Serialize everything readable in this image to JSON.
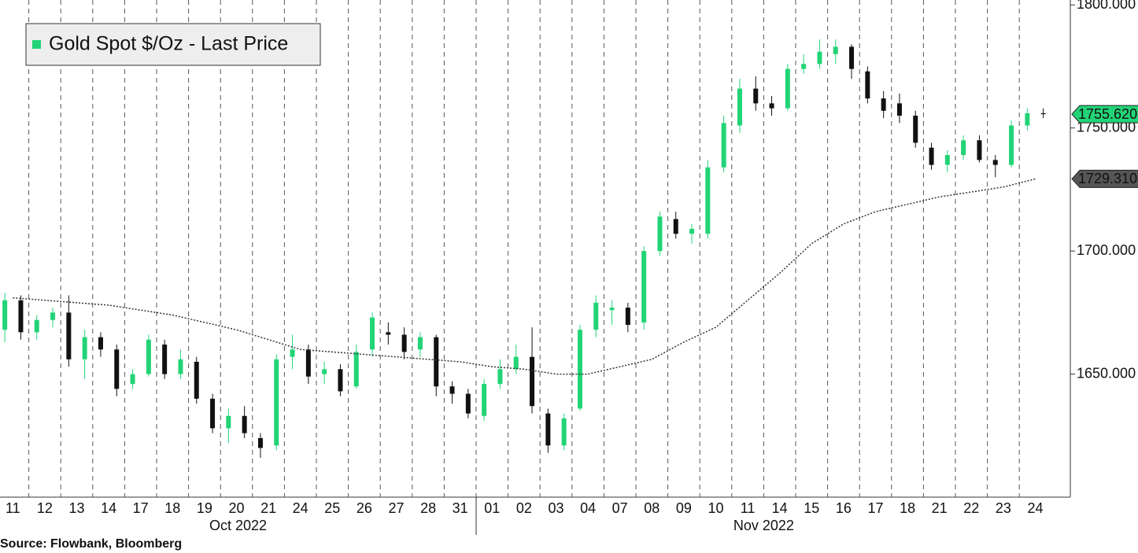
{
  "chart_data": {
    "type": "candlestick",
    "legend": "Gold Spot $/Oz - Last Price",
    "source": "Source:  Flowbank, Bloomberg",
    "categories": [
      "11",
      "12",
      "13",
      "14",
      "17",
      "18",
      "19",
      "20",
      "21",
      "24",
      "25",
      "26",
      "27",
      "28",
      "31",
      "01",
      "02",
      "03",
      "04",
      "07",
      "08",
      "09",
      "10",
      "11",
      "14",
      "15",
      "16",
      "17",
      "18",
      "21",
      "22",
      "23",
      "24"
    ],
    "month_labels": [
      "Oct 2022",
      "Nov 2022"
    ],
    "up_color": "#22d477",
    "down_color": "#111111",
    "open": [
      1668,
      1680,
      1667,
      1672,
      1675,
      1656,
      1665,
      1660,
      1646,
      1650,
      1662,
      1650,
      1655,
      1640,
      1628,
      1633,
      1624,
      1621,
      1657,
      1660,
      1650,
      1652,
      1645,
      1660,
      1667,
      1666,
      1660,
      1665,
      1645,
      1642,
      1633,
      1646,
      1652,
      1657,
      1634,
      1621,
      1636,
      1668,
      1676,
      1677,
      1671,
      1700,
      1713,
      1707,
      1707,
      1734,
      1751,
      1766,
      1760,
      1758,
      1774,
      1776,
      1780,
      1783,
      1773,
      1762,
      1760,
      1755,
      1742,
      1735,
      1739,
      1745,
      1737,
      1735,
      1751,
      1756
    ],
    "high": [
      1683,
      1682,
      1674,
      1677,
      1682,
      1668,
      1667,
      1662,
      1652,
      1666,
      1664,
      1660,
      1657,
      1642,
      1636,
      1637,
      1626,
      1658,
      1666,
      1662,
      1655,
      1654,
      1662,
      1675,
      1671,
      1669,
      1667,
      1666,
      1647,
      1644,
      1648,
      1656,
      1662,
      1669,
      1636,
      1634,
      1670,
      1682,
      1680,
      1679,
      1702,
      1716,
      1716,
      1711,
      1737,
      1755,
      1770,
      1771,
      1763,
      1776,
      1780,
      1786,
      1786,
      1784,
      1775,
      1765,
      1764,
      1757,
      1744,
      1741,
      1747,
      1747,
      1739,
      1753,
      1758,
      1758
    ],
    "low": [
      1663,
      1664,
      1664,
      1669,
      1653,
      1648,
      1657,
      1641,
      1644,
      1649,
      1648,
      1648,
      1638,
      1626,
      1622,
      1624,
      1616,
      1619,
      1652,
      1646,
      1646,
      1641,
      1644,
      1657,
      1662,
      1656,
      1657,
      1641,
      1638,
      1632,
      1631,
      1644,
      1650,
      1634,
      1618,
      1619,
      1635,
      1665,
      1670,
      1667,
      1668,
      1698,
      1705,
      1703,
      1705,
      1732,
      1748,
      1757,
      1755,
      1757,
      1772,
      1774,
      1776,
      1770,
      1760,
      1754,
      1752,
      1742,
      1733,
      1732,
      1737,
      1736,
      1730,
      1734,
      1749,
      1754
    ],
    "close": [
      1680,
      1667,
      1672,
      1675,
      1656,
      1665,
      1660,
      1644,
      1650,
      1664,
      1650,
      1656,
      1640,
      1628,
      1633,
      1626,
      1620,
      1656,
      1660,
      1649,
      1652,
      1643,
      1659,
      1673,
      1666,
      1659,
      1665,
      1645,
      1642,
      1634,
      1646,
      1652,
      1657,
      1637,
      1621,
      1632,
      1668,
      1679,
      1677,
      1670,
      1700,
      1714,
      1707,
      1709,
      1734,
      1752,
      1766,
      1760,
      1758,
      1774,
      1776,
      1781,
      1783,
      1774,
      1762,
      1757,
      1755,
      1744,
      1735,
      1739,
      1745,
      1737,
      1735,
      1751,
      1756,
      1755.62
    ],
    "moving_average": [
      1681,
      1680,
      1679,
      1678,
      1676,
      1674,
      1671,
      1668,
      1664,
      1660,
      1659,
      1658,
      1657,
      1656,
      1655,
      1653,
      1652,
      1650,
      1650,
      1653,
      1656,
      1663,
      1669,
      1680,
      1691,
      1703,
      1711,
      1716,
      1719,
      1722,
      1724,
      1726,
      1729.31
    ],
    "price_tags": [
      {
        "value": 1755.62,
        "label": "1755.620",
        "color": "#22d477"
      },
      {
        "value": 1729.31,
        "label": "1729.310",
        "color": "#555555"
      }
    ],
    "ylim": [
      1600,
      1802
    ],
    "yticks": [
      {
        "value": 1650,
        "label": "1650.000"
      },
      {
        "value": 1700,
        "label": "1700.000"
      },
      {
        "value": 1750,
        "label": "1750.000"
      },
      {
        "value": 1800,
        "label": "1800.000"
      }
    ],
    "grid": true
  }
}
